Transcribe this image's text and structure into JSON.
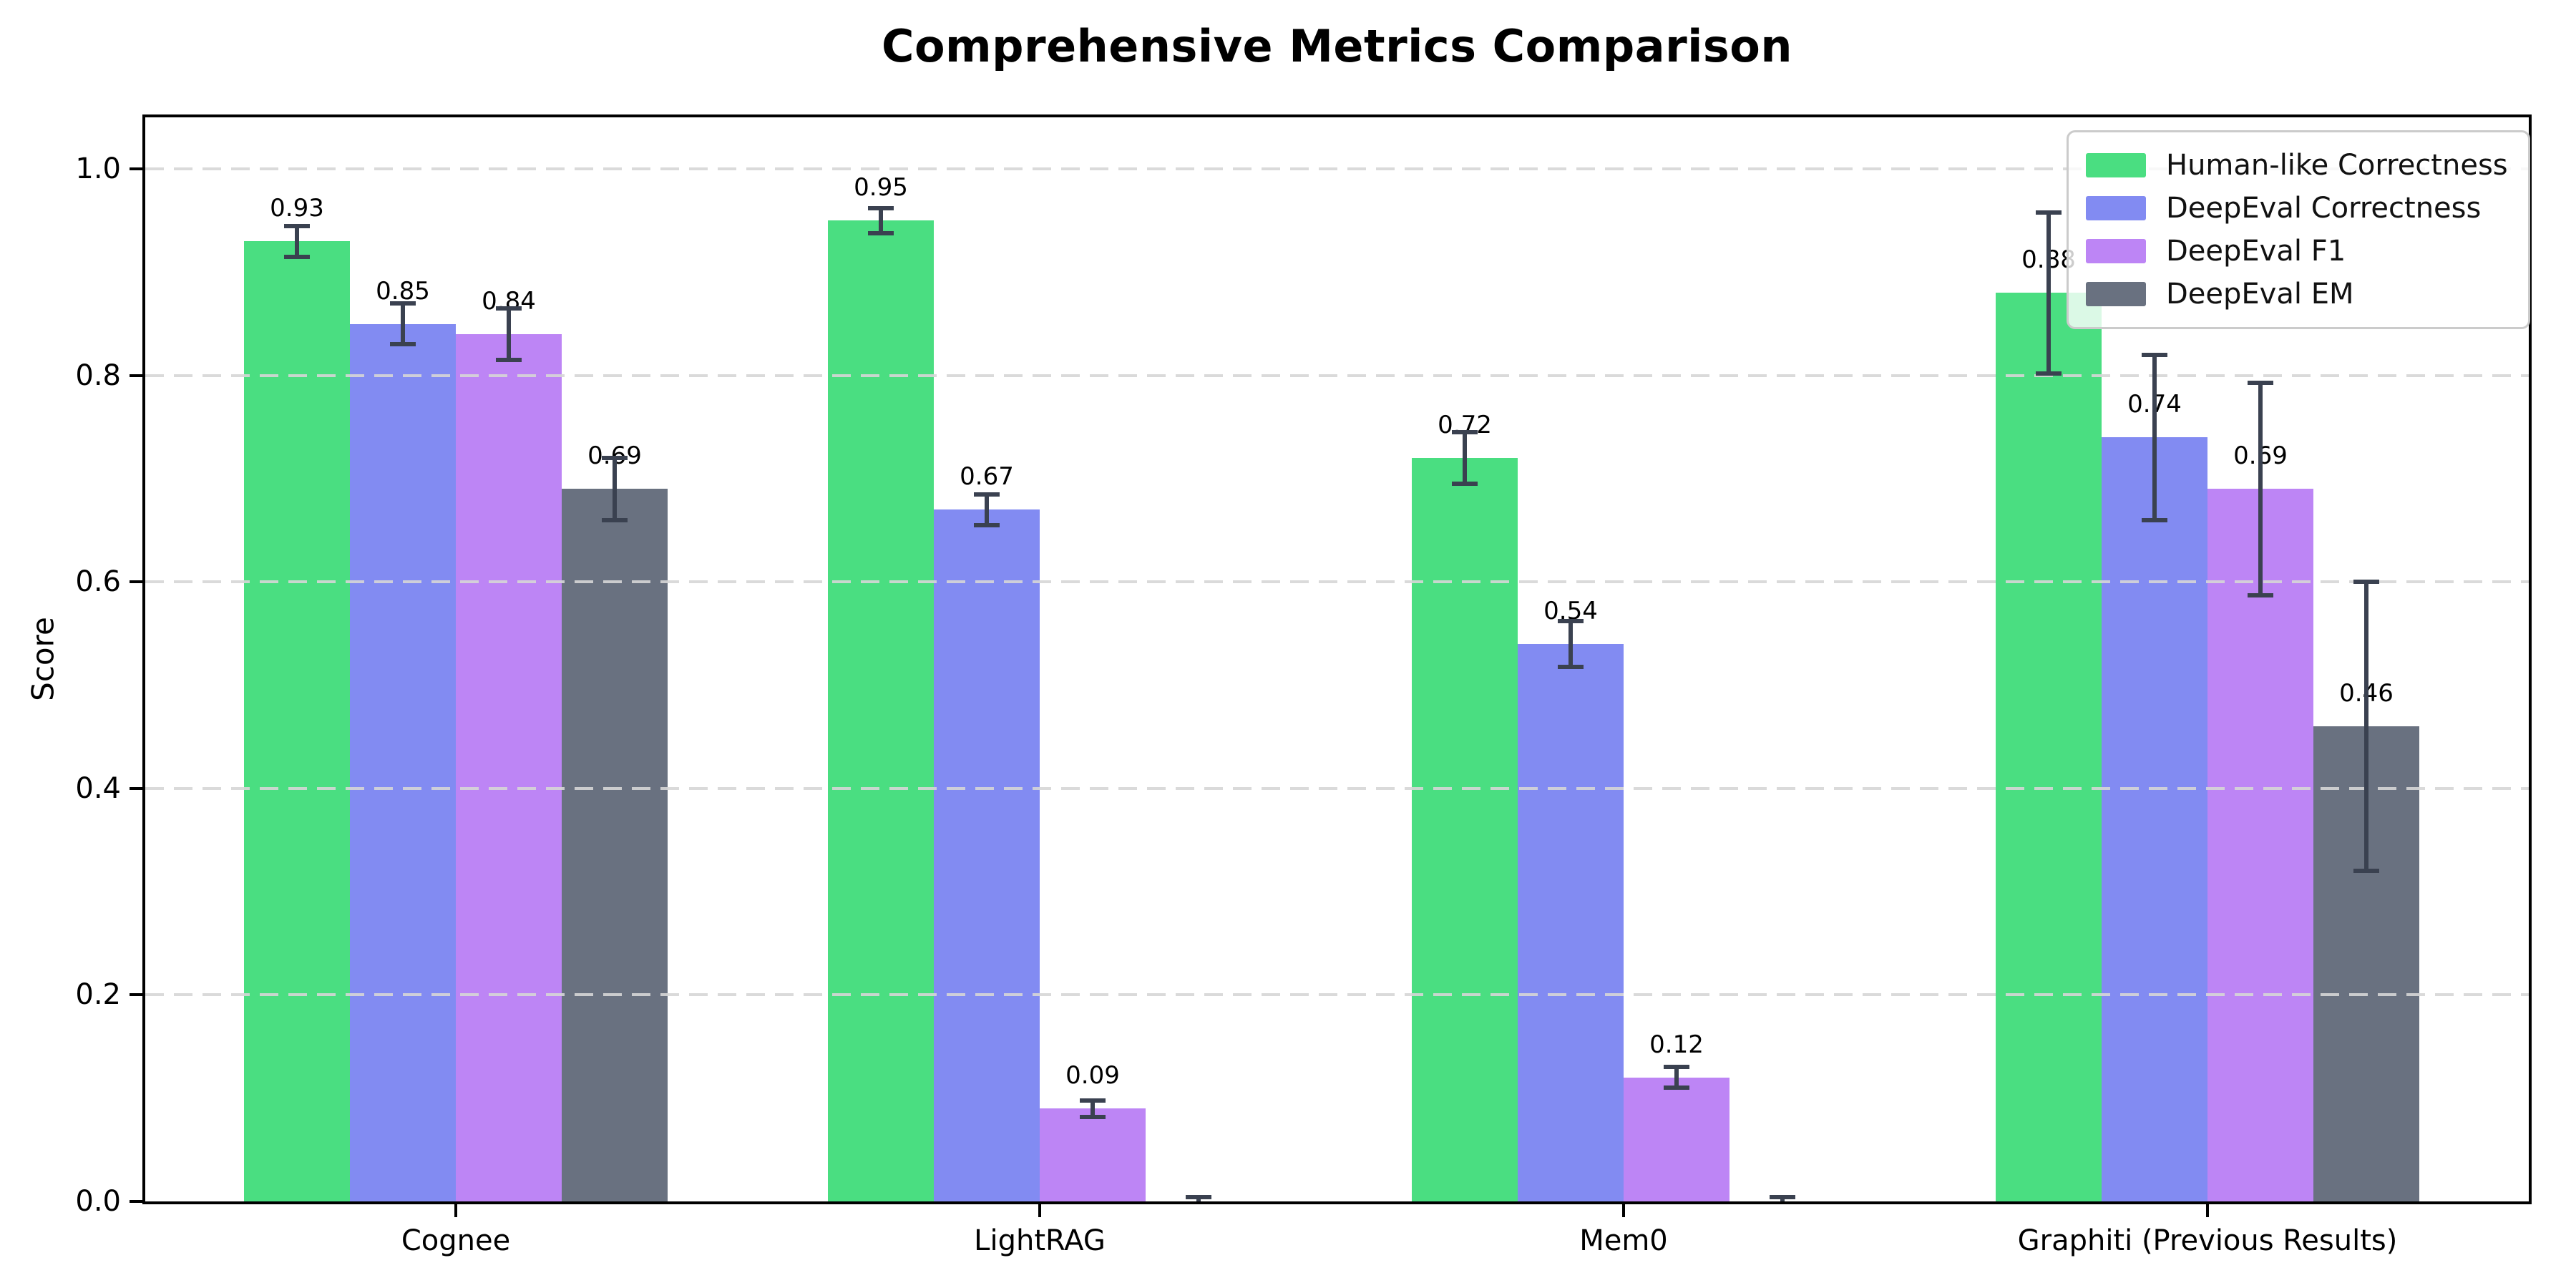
{
  "header": {
    "title": "Comprehensive Metrics Comparison"
  },
  "chart_data": {
    "type": "bar",
    "title": "Comprehensive Metrics Comparison",
    "xlabel": "",
    "ylabel": "Score",
    "categories": [
      "Cognee",
      "LightRAG",
      "Mem0",
      "Graphiti (Previous Results)"
    ],
    "yticks": [
      "0.0",
      "0.2",
      "0.4",
      "0.6",
      "0.8",
      "1.0"
    ],
    "ytick_values": [
      0.0,
      0.2,
      0.4,
      0.6,
      0.8,
      1.0
    ],
    "ylim": [
      0,
      1.05
    ],
    "grid": "horizontal-dashed",
    "legend_position": "upper-right",
    "error_bar_color": "#3a4150",
    "grid_color": "#d6d6d6",
    "axis_color": "#000000",
    "series": [
      {
        "name": "Human-like Correctness",
        "color": "#4ade81",
        "values": [
          0.93,
          0.95,
          0.72,
          0.88
        ],
        "errors": [
          0.015,
          0.012,
          0.025,
          0.078
        ],
        "labels": [
          "0.93",
          "0.95",
          "0.72",
          "0.88"
        ]
      },
      {
        "name": "DeepEval Correctness",
        "color": "#828bf2",
        "values": [
          0.85,
          0.67,
          0.54,
          0.74
        ],
        "errors": [
          0.02,
          0.015,
          0.022,
          0.08
        ],
        "labels": [
          "0.85",
          "0.67",
          "0.54",
          "0.74"
        ]
      },
      {
        "name": "DeepEval F1",
        "color": "#bd85f5",
        "values": [
          0.84,
          0.09,
          0.12,
          0.69
        ],
        "errors": [
          0.025,
          0.008,
          0.01,
          0.103
        ],
        "labels": [
          "0.84",
          "0.09",
          "0.12",
          "0.69"
        ]
      },
      {
        "name": "DeepEval EM",
        "color": "#697180",
        "values": [
          0.69,
          0.0,
          0.0,
          0.46
        ],
        "errors": [
          0.03,
          0.004,
          0.004,
          0.14
        ],
        "labels": [
          "0.69",
          "",
          "",
          "0.46"
        ]
      }
    ]
  }
}
